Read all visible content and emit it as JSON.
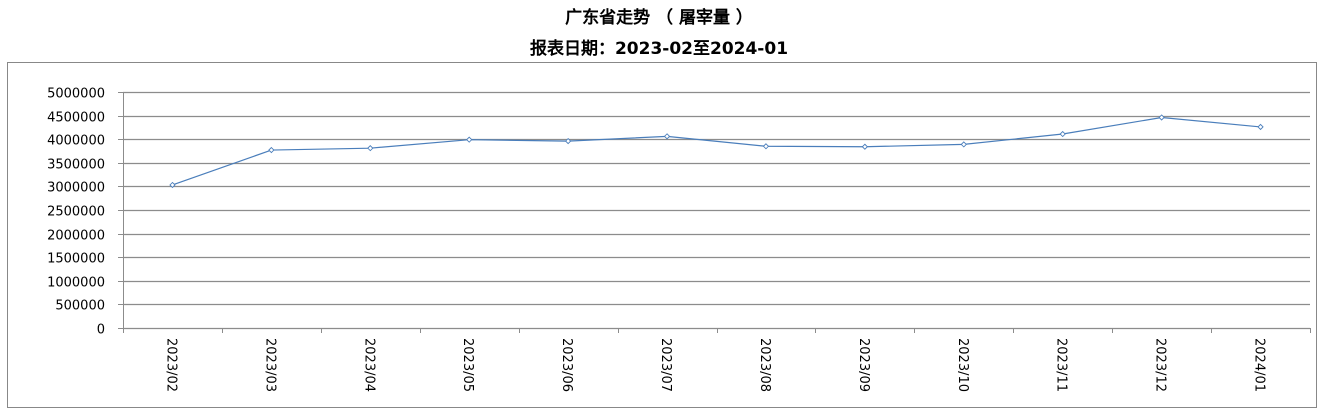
{
  "chart_data": {
    "type": "line",
    "title": "广东省走势 （ 屠宰量 ）",
    "subtitle": "报表日期：2023-02至2024-01",
    "xlabel": "",
    "ylabel": "",
    "categories": [
      "2023/02",
      "2023/03",
      "2023/04",
      "2023/05",
      "2023/06",
      "2023/07",
      "2023/08",
      "2023/09",
      "2023/10",
      "2023/11",
      "2023/12",
      "2024/01"
    ],
    "series": [
      {
        "values": [
          3030000,
          3770000,
          3810000,
          3990000,
          3960000,
          4060000,
          3850000,
          3840000,
          3890000,
          4110000,
          4460000,
          4260000
        ],
        "color": "#4a7ebb",
        "marker": "diamond"
      }
    ],
    "ylim": [
      0,
      5000000
    ],
    "yticks": [
      "0",
      "500000",
      "1000000",
      "1500000",
      "2000000",
      "2500000",
      "3000000",
      "3500000",
      "4000000",
      "4500000",
      "5000000"
    ],
    "grid": true,
    "legend": "none"
  }
}
